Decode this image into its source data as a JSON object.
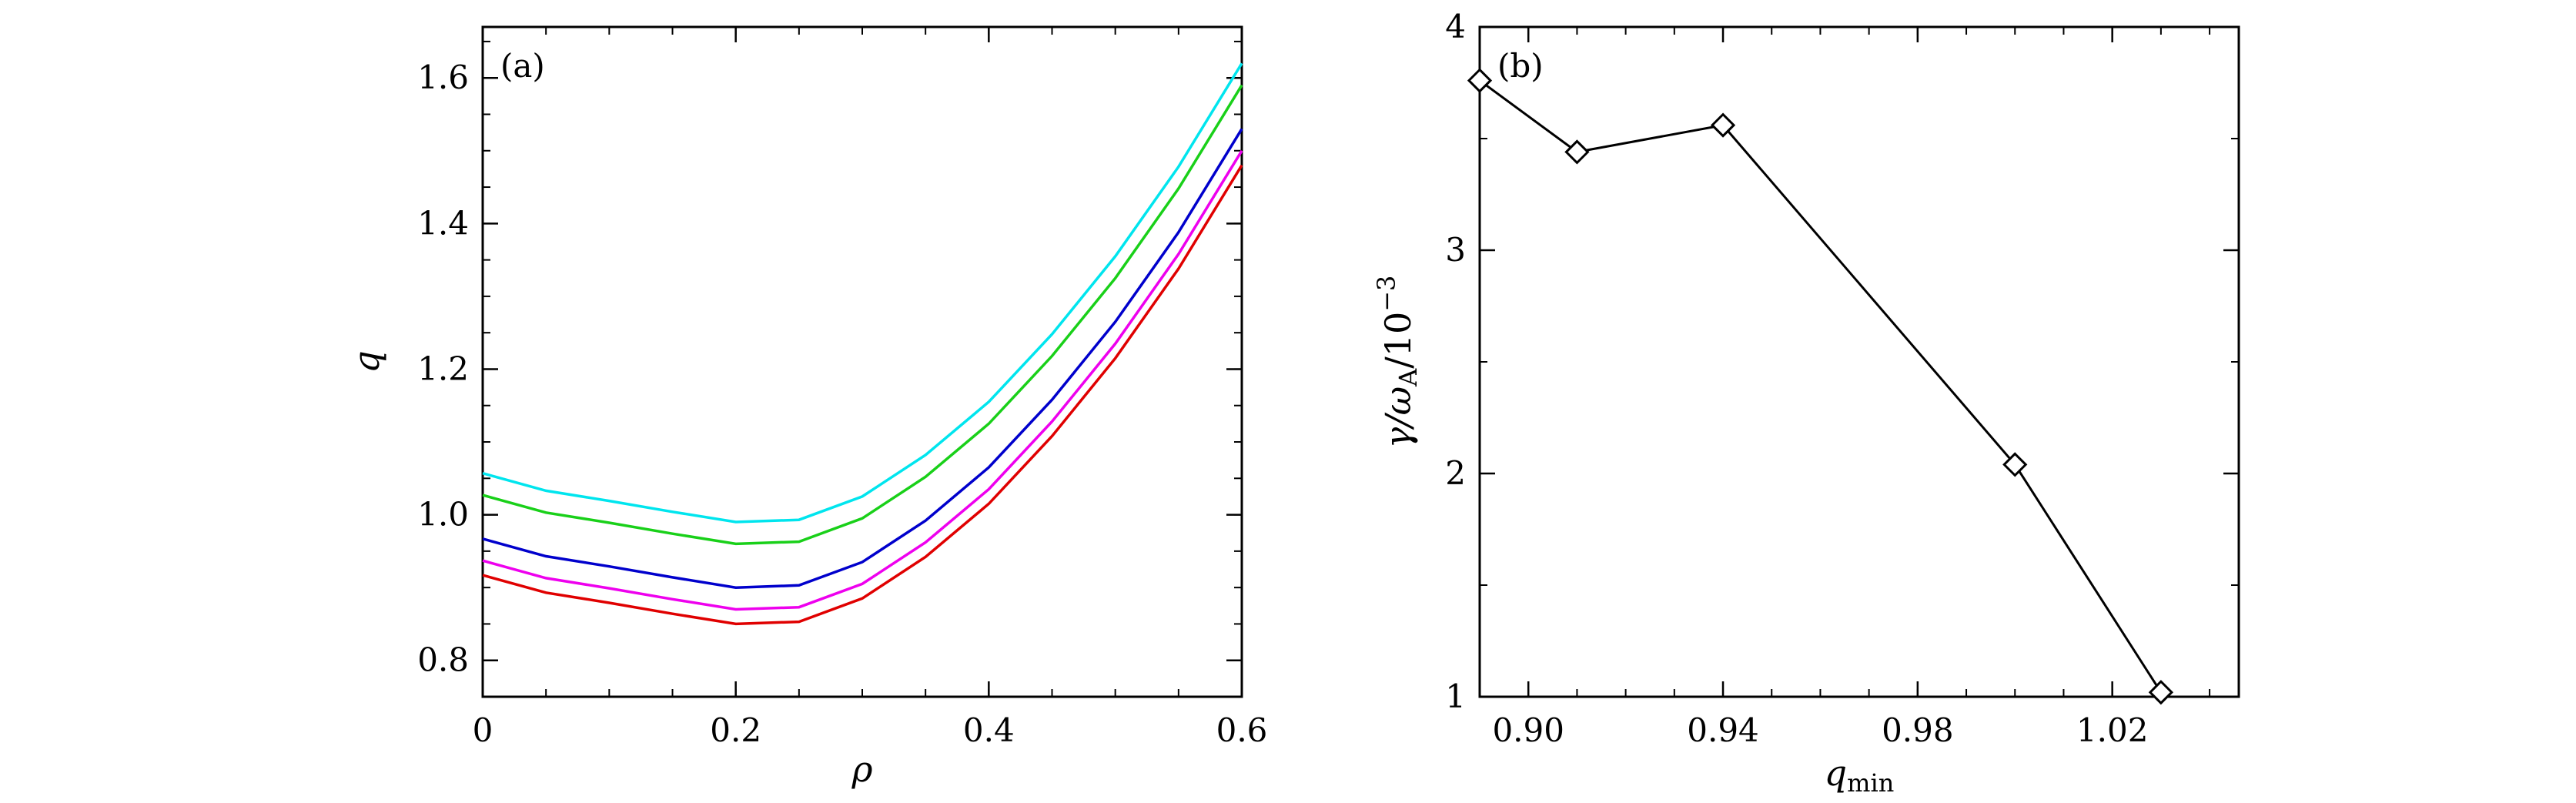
{
  "chart_data": [
    {
      "type": "line",
      "panel_label": "(a)",
      "title": "",
      "xlabel": "ρ",
      "ylabel": "q",
      "xlim": [
        0,
        0.6
      ],
      "ylim": [
        0.75,
        1.67
      ],
      "xticks": [
        0,
        0.2,
        0.4,
        0.6
      ],
      "xtick_labels": [
        "0",
        "0.2",
        "0.4",
        "0.6"
      ],
      "yticks": [
        0.8,
        1.0,
        1.2,
        1.4,
        1.6
      ],
      "ytick_labels": [
        "0.8",
        "1.0",
        "1.2",
        "1.4",
        "1.6"
      ],
      "grid": false,
      "x": [
        0,
        0.05,
        0.1,
        0.15,
        0.2,
        0.25,
        0.3,
        0.35,
        0.4,
        0.45,
        0.5,
        0.55,
        0.6
      ],
      "series": [
        {
          "name": "cyan",
          "color": "#00e5ee",
          "values": [
            1.057,
            1.033,
            1.019,
            1.004,
            0.99,
            0.993,
            1.025,
            1.082,
            1.155,
            1.248,
            1.355,
            1.478,
            1.62
          ]
        },
        {
          "name": "green",
          "color": "#19d019",
          "values": [
            1.027,
            1.003,
            0.989,
            0.974,
            0.96,
            0.963,
            0.995,
            1.052,
            1.125,
            1.218,
            1.325,
            1.448,
            1.59
          ]
        },
        {
          "name": "blue",
          "color": "#0000cc",
          "values": [
            0.967,
            0.943,
            0.929,
            0.914,
            0.9,
            0.903,
            0.935,
            0.992,
            1.065,
            1.158,
            1.265,
            1.388,
            1.53
          ]
        },
        {
          "name": "magenta",
          "color": "#ee00ee",
          "values": [
            0.937,
            0.913,
            0.899,
            0.884,
            0.87,
            0.873,
            0.905,
            0.962,
            1.035,
            1.128,
            1.235,
            1.358,
            1.5
          ]
        },
        {
          "name": "red",
          "color": "#e00000",
          "values": [
            0.917,
            0.893,
            0.879,
            0.864,
            0.85,
            0.853,
            0.885,
            0.942,
            1.015,
            1.108,
            1.215,
            1.338,
            1.48
          ]
        }
      ]
    },
    {
      "type": "line",
      "marker": "diamond",
      "panel_label": "(b)",
      "title": "",
      "xlabel": "q_min",
      "xlabel_main": "q",
      "xlabel_sub": "min",
      "ylabel": "γ/ω_A/10^-3",
      "ylabel_parts": {
        "gamma_omega": "γ/ω",
        "sub": "A",
        "div": "/10",
        "sup": "−3"
      },
      "xlim": [
        0.89,
        1.046
      ],
      "ylim": [
        1,
        4
      ],
      "xticks": [
        0.9,
        0.94,
        0.98,
        1.02
      ],
      "xtick_labels": [
        "0.90",
        "0.94",
        "0.98",
        "1.02"
      ],
      "yticks": [
        1,
        2,
        3,
        4
      ],
      "ytick_labels": [
        "1",
        "2",
        "3",
        "4"
      ],
      "grid": false,
      "x": [
        0.89,
        0.91,
        0.94,
        1.0,
        1.03
      ],
      "values": [
        3.76,
        3.44,
        3.56,
        2.04,
        1.02
      ],
      "color": "#000000"
    }
  ]
}
